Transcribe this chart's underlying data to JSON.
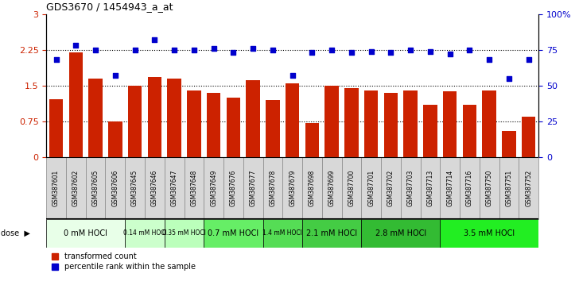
{
  "title": "GDS3670 / 1454943_a_at",
  "samples": [
    "GSM387601",
    "GSM387602",
    "GSM387605",
    "GSM387606",
    "GSM387645",
    "GSM387646",
    "GSM387647",
    "GSM387648",
    "GSM387649",
    "GSM387676",
    "GSM387677",
    "GSM387678",
    "GSM387679",
    "GSM387698",
    "GSM387699",
    "GSM387700",
    "GSM387701",
    "GSM387702",
    "GSM387703",
    "GSM387713",
    "GSM387714",
    "GSM387716",
    "GSM387750",
    "GSM387751",
    "GSM387752"
  ],
  "bar_values": [
    1.22,
    2.2,
    1.65,
    0.75,
    1.5,
    1.68,
    1.65,
    1.4,
    1.35,
    1.25,
    1.62,
    1.2,
    1.55,
    0.72,
    1.5,
    1.45,
    1.4,
    1.35,
    1.4,
    1.1,
    1.38,
    1.1,
    1.4,
    0.55,
    0.85
  ],
  "scatter_values_pct": [
    68,
    78,
    75,
    57,
    75,
    82,
    75,
    75,
    76,
    73,
    76,
    75,
    57,
    73,
    75,
    73,
    74,
    73,
    75,
    74,
    72,
    75,
    68,
    55,
    68
  ],
  "dose_groups": [
    {
      "label": "0 mM HOCl",
      "start": 0,
      "end": 4,
      "color": "#e8ffe8"
    },
    {
      "label": "0.14 mM HOCl",
      "start": 4,
      "end": 6,
      "color": "#ccffcc"
    },
    {
      "label": "0.35 mM HOCl",
      "start": 6,
      "end": 8,
      "color": "#bbffbb"
    },
    {
      "label": "0.7 mM HOCl",
      "start": 8,
      "end": 11,
      "color": "#66ee66"
    },
    {
      "label": "1.4 mM HOCl",
      "start": 11,
      "end": 13,
      "color": "#55dd55"
    },
    {
      "label": "2.1 mM HOCl",
      "start": 13,
      "end": 16,
      "color": "#44cc44"
    },
    {
      "label": "2.8 mM HOCl",
      "start": 16,
      "end": 20,
      "color": "#33bb33"
    },
    {
      "label": "3.5 mM HOCl",
      "start": 20,
      "end": 25,
      "color": "#22ee22"
    }
  ],
  "bar_color": "#cc2200",
  "scatter_color": "#0000cc",
  "yticks_left": [
    0,
    0.75,
    1.5,
    2.25,
    3
  ],
  "ytick_labels_left": [
    "0",
    "0.75",
    "1.5",
    "2.25",
    "3"
  ],
  "yticks_right": [
    0,
    25,
    50,
    75,
    100
  ],
  "ytick_labels_right": [
    "0",
    "25",
    "50",
    "75",
    "100%"
  ],
  "ylim_left": [
    0,
    3
  ],
  "ylim_right": [
    0,
    100
  ],
  "dose_label": "dose",
  "legend_bar": "transformed count",
  "legend_scatter": "percentile rank within the sample",
  "sample_box_color": "#d8d8d8",
  "sample_box_edge": "#888888",
  "bar_width": 0.7
}
